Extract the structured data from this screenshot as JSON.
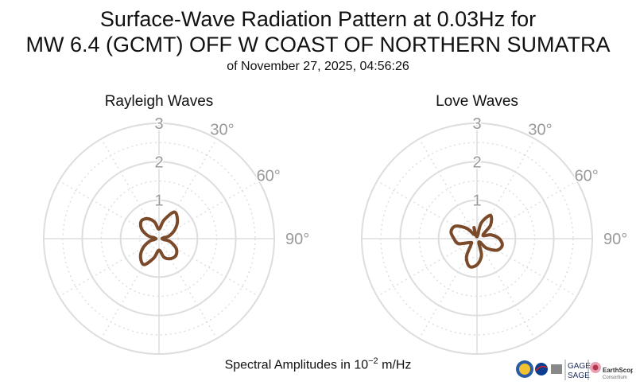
{
  "header": {
    "title_line1": "Surface-Wave Radiation Pattern at 0.03Hz for",
    "title_line2": "MW 6.4 (GCMT) OFF W COAST OF NORTHERN SUMATRA",
    "subtitle": "of November 27, 2025, 04:56:26"
  },
  "caption": {
    "prefix": "Spectral Amplitudes in 10",
    "exponent": "−2",
    "suffix": " m/Hz"
  },
  "colors": {
    "pattern": "#7a4a2a",
    "grid": "#dddddd",
    "label": "#999999"
  },
  "logos": {
    "gage_sage_top": "GAGE",
    "gage_sage_bottom": "SAGE",
    "earthscope": "EarthScope",
    "earthscope_sub": "Consortium"
  },
  "chart_data": [
    {
      "type": "polar",
      "title": "Rayleigh Waves",
      "r_ticks": [
        1,
        2,
        3
      ],
      "rlim": [
        0,
        3
      ],
      "angle_labels": [
        "30°",
        "60°",
        "90°"
      ],
      "angles_deg": [
        0,
        15,
        30,
        45,
        60,
        75,
        90,
        105,
        120,
        135,
        150,
        165,
        180,
        195,
        210,
        225,
        240,
        255,
        270,
        285,
        300,
        315,
        330,
        345
      ],
      "radius": [
        0.25,
        0.5,
        0.8,
        0.68,
        0.48,
        0.27,
        0.08,
        0.3,
        0.52,
        0.62,
        0.6,
        0.5,
        0.3,
        0.52,
        0.78,
        0.68,
        0.48,
        0.25,
        0.08,
        0.3,
        0.53,
        0.65,
        0.6,
        0.45
      ],
      "grid": true
    },
    {
      "type": "polar",
      "title": "Love Waves",
      "r_ticks": [
        1,
        2,
        3
      ],
      "rlim": [
        0,
        3
      ],
      "angle_labels": [
        "30°",
        "60°",
        "90°"
      ],
      "angles_deg": [
        0,
        15,
        30,
        45,
        60,
        75,
        90,
        105,
        120,
        135,
        150,
        165,
        180,
        195,
        210,
        225,
        240,
        255,
        270,
        285,
        300,
        315,
        330,
        345
      ],
      "radius": [
        0.05,
        0.42,
        0.7,
        0.5,
        0.18,
        0.38,
        0.58,
        0.68,
        0.6,
        0.35,
        0.1,
        0.45,
        0.68,
        0.75,
        0.55,
        0.22,
        0.2,
        0.5,
        0.6,
        0.7,
        0.65,
        0.38,
        0.12,
        0.3
      ],
      "grid": true
    }
  ]
}
